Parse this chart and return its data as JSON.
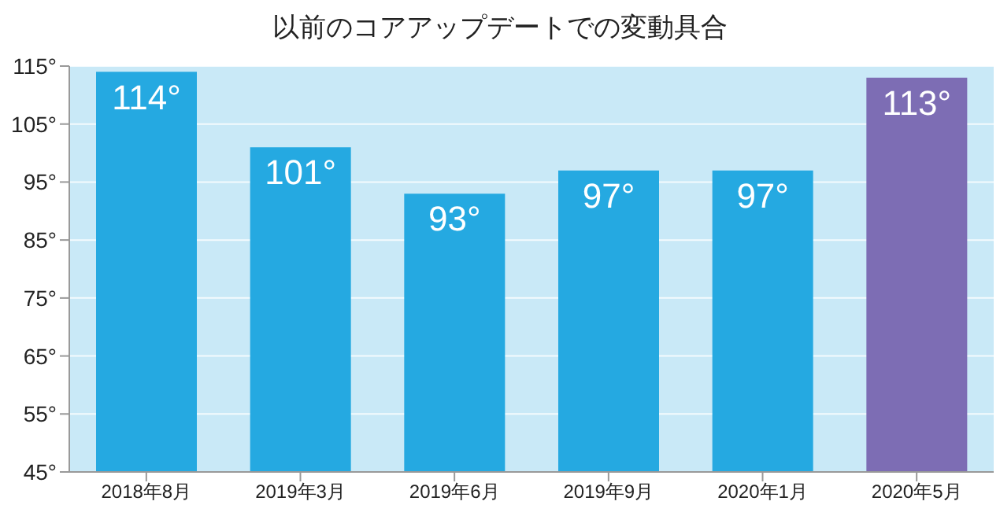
{
  "chart_data": {
    "type": "bar",
    "title": "以前のコアアップデートでの変動具合",
    "categories": [
      "2018年8月",
      "2019年3月",
      "2019年6月",
      "2019年9月",
      "2020年1月",
      "2020年5月"
    ],
    "values": [
      114,
      101,
      93,
      97,
      97,
      113
    ],
    "colors": [
      "#25a9e1",
      "#25a9e1",
      "#25a9e1",
      "#25a9e1",
      "#25a9e1",
      "#7d6db4"
    ],
    "value_labels": [
      "114°",
      "101°",
      "93°",
      "97°",
      "97°",
      "113°"
    ],
    "ylim": [
      45,
      115
    ],
    "yticks": [
      {
        "value": 45,
        "label": "45°"
      },
      {
        "value": 55,
        "label": "55°"
      },
      {
        "value": 65,
        "label": "65°"
      },
      {
        "value": 75,
        "label": "75°"
      },
      {
        "value": 85,
        "label": "85°"
      },
      {
        "value": 95,
        "label": "95°"
      },
      {
        "value": 105,
        "label": "105°"
      },
      {
        "value": 115,
        "label": "115°"
      }
    ],
    "grid": "y"
  }
}
